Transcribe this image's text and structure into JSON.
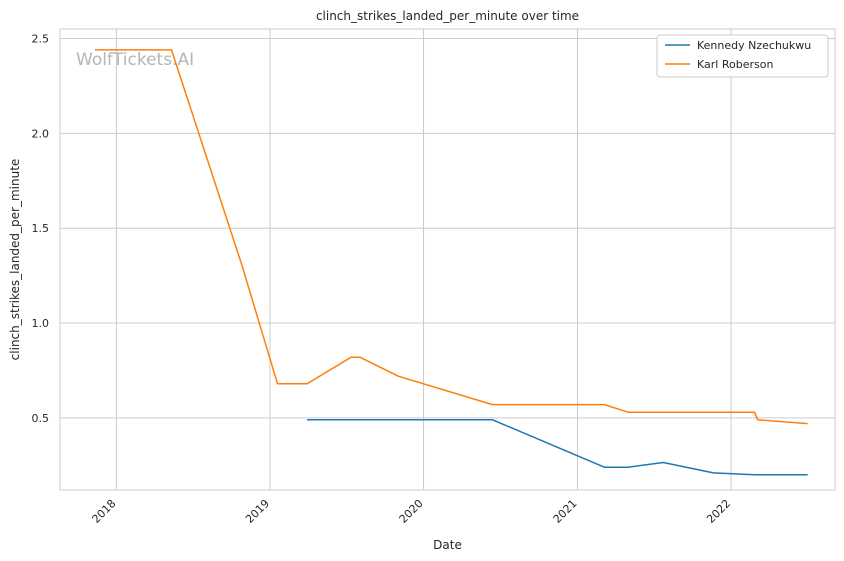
{
  "chart_data": {
    "type": "line",
    "title": "clinch_strikes_landed_per_minute over time",
    "xlabel": "Date",
    "ylabel": "clinch_strikes_landed_per_minute",
    "watermark": "WolfTickets.AI",
    "xlim": [
      "2017-08-20",
      "2022-09-05"
    ],
    "ylim": [
      0.12,
      2.55
    ],
    "x_ticks": [
      {
        "label": "2018",
        "date": "2018-01-01"
      },
      {
        "label": "2019",
        "date": "2019-01-01"
      },
      {
        "label": "2020",
        "date": "2020-01-01"
      },
      {
        "label": "2021",
        "date": "2021-01-01"
      },
      {
        "label": "2022",
        "date": "2022-01-01"
      }
    ],
    "y_ticks": [
      {
        "label": "0.5",
        "value": 0.5
      },
      {
        "label": "1.0",
        "value": 1.0
      },
      {
        "label": "1.5",
        "value": 1.5
      },
      {
        "label": "2.0",
        "value": 2.0
      },
      {
        "label": "2.5",
        "value": 2.5
      }
    ],
    "grid": true,
    "legend_position": "top-right",
    "series": [
      {
        "name": "Kennedy Nzechukwu",
        "color": "#1f77b4",
        "points": [
          {
            "x": "2019-03-30",
            "y": 0.49
          },
          {
            "x": "2020-06-13",
            "y": 0.49
          },
          {
            "x": "2021-03-06",
            "y": 0.24
          },
          {
            "x": "2021-05-01",
            "y": 0.24
          },
          {
            "x": "2021-07-24",
            "y": 0.265
          },
          {
            "x": "2021-11-20",
            "y": 0.21
          },
          {
            "x": "2022-02-26",
            "y": 0.2
          },
          {
            "x": "2022-07-02",
            "y": 0.2
          }
        ]
      },
      {
        "name": "Karl Roberson",
        "color": "#ff7f0e",
        "points": [
          {
            "x": "2017-11-11",
            "y": 2.44
          },
          {
            "x": "2018-05-12",
            "y": 2.44
          },
          {
            "x": "2018-10-27",
            "y": 1.3
          },
          {
            "x": "2019-01-19",
            "y": 0.68
          },
          {
            "x": "2019-03-30",
            "y": 0.68
          },
          {
            "x": "2019-07-13",
            "y": 0.82
          },
          {
            "x": "2019-08-03",
            "y": 0.82
          },
          {
            "x": "2019-11-02",
            "y": 0.72
          },
          {
            "x": "2020-06-13",
            "y": 0.57
          },
          {
            "x": "2021-03-06",
            "y": 0.57
          },
          {
            "x": "2021-05-01",
            "y": 0.53
          },
          {
            "x": "2022-02-26",
            "y": 0.53
          },
          {
            "x": "2022-03-05",
            "y": 0.49
          },
          {
            "x": "2022-07-02",
            "y": 0.47
          }
        ]
      }
    ]
  }
}
